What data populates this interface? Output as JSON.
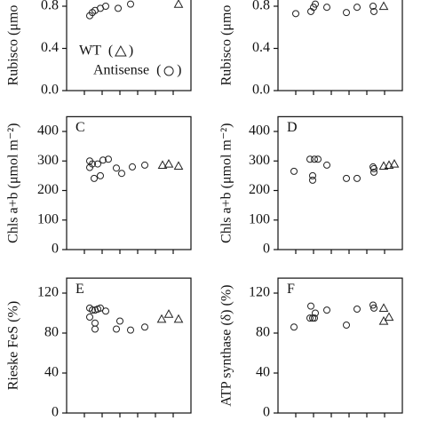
{
  "chart_data": [
    {
      "type": "scatter",
      "ylabel": "Rubisco (μmo",
      "xlim": [
        0,
        7
      ],
      "xticks": [
        1,
        2,
        3,
        4,
        5,
        6
      ],
      "ylim": [
        0,
        1.0
      ],
      "yticks": [
        {
          "value": 0,
          "label": "0.0"
        },
        0.4,
        0.8
      ],
      "legend": true,
      "series": [
        {
          "name": "WT",
          "marker": "triangle",
          "x": [
            6.3
          ],
          "values": [
            0.82
          ]
        },
        {
          "name": "Antisense",
          "marker": "circle",
          "x": [
            1.3,
            1.45,
            1.6,
            1.9,
            2.2,
            2.9,
            3.6
          ],
          "values": [
            0.71,
            0.74,
            0.76,
            0.78,
            0.8,
            0.78,
            0.82
          ]
        }
      ]
    },
    {
      "type": "scatter",
      "ylabel": "Rubisco (μmo",
      "xlim": [
        0,
        7
      ],
      "xticks": [
        1,
        2,
        3,
        4,
        5,
        6
      ],
      "ylim": [
        0,
        1.0
      ],
      "yticks": [
        {
          "value": 0,
          "label": "0.0"
        },
        0.4,
        0.8
      ],
      "series": [
        {
          "marker": "triangle",
          "x": [
            5.95
          ],
          "values": [
            0.8
          ]
        },
        {
          "marker": "circle",
          "x": [
            1.0,
            1.85,
            2.0,
            2.1,
            2.75,
            3.85,
            4.45,
            5.35,
            5.4
          ],
          "values": [
            0.73,
            0.75,
            0.79,
            0.82,
            0.79,
            0.74,
            0.79,
            0.8,
            0.75
          ]
        }
      ]
    },
    {
      "type": "scatter",
      "title": "C",
      "ylabel": "Chls a+b (μmol m⁻²)",
      "xlim": [
        0,
        7
      ],
      "xticks": [
        1,
        2,
        3,
        4,
        5,
        6
      ],
      "ylim": [
        0,
        450
      ],
      "yticks": [
        0,
        100,
        200,
        300,
        400
      ],
      "series": [
        {
          "marker": "triangle",
          "x": [
            5.4,
            5.75,
            6.3
          ],
          "values": [
            286,
            290,
            283
          ]
        },
        {
          "marker": "circle",
          "x": [
            1.3,
            1.3,
            1.45,
            1.55,
            1.75,
            1.9,
            2.05,
            2.35,
            2.8,
            3.1,
            3.7,
            4.4
          ],
          "values": [
            300,
            278,
            290,
            241,
            290,
            250,
            303,
            306,
            276,
            258,
            280,
            286
          ]
        }
      ]
    },
    {
      "type": "scatter",
      "title": "D",
      "ylabel": "Chls a+b (μmol m⁻²)",
      "xlim": [
        0,
        7
      ],
      "xticks": [
        1,
        2,
        3,
        4,
        5,
        6
      ],
      "ylim": [
        0,
        450
      ],
      "yticks": [
        0,
        100,
        200,
        300,
        400
      ],
      "series": [
        {
          "marker": "triangle",
          "x": [
            5.95,
            6.25,
            6.55
          ],
          "values": [
            283,
            286,
            290
          ]
        },
        {
          "marker": "circle",
          "x": [
            0.9,
            1.8,
            1.95,
            1.95,
            2.05,
            2.25,
            2.75,
            3.85,
            4.45,
            5.35,
            5.4,
            5.4
          ],
          "values": [
            265,
            306,
            250,
            235,
            306,
            306,
            286,
            241,
            241,
            280,
            262,
            274
          ]
        }
      ]
    },
    {
      "type": "scatter",
      "title": "E",
      "ylabel": "Rieske FeS (%)",
      "xlim": [
        0,
        7
      ],
      "xticks": [
        1,
        2,
        3,
        4,
        5,
        6
      ],
      "ylim": [
        0,
        135
      ],
      "yticks": [
        0,
        40,
        80,
        120
      ],
      "series": [
        {
          "marker": "triangle",
          "x": [
            5.35,
            5.75,
            6.3
          ],
          "values": [
            94,
            99,
            94
          ]
        },
        {
          "marker": "circle",
          "x": [
            1.3,
            1.3,
            1.45,
            1.6,
            1.6,
            1.6,
            1.75,
            1.9,
            2.2,
            2.8,
            3.0,
            3.6,
            4.4
          ],
          "values": [
            105,
            96,
            103,
            103,
            90,
            84,
            104,
            105,
            102,
            84,
            92,
            83,
            86
          ]
        }
      ]
    },
    {
      "type": "scatter",
      "title": "F",
      "ylabel": "ATP synthase (δ) (%)",
      "xlim": [
        0,
        7
      ],
      "xticks": [
        1,
        2,
        3,
        4,
        5,
        6
      ],
      "ylim": [
        0,
        135
      ],
      "yticks": [
        0,
        40,
        80,
        120
      ],
      "series": [
        {
          "marker": "triangle",
          "x": [
            5.95,
            5.95,
            6.25
          ],
          "values": [
            105,
            92,
            96
          ]
        },
        {
          "marker": "circle",
          "x": [
            0.9,
            1.8,
            1.85,
            1.95,
            2.05,
            2.1,
            2.75,
            3.85,
            4.45,
            5.35,
            5.4
          ],
          "values": [
            86,
            95,
            107,
            95,
            95,
            100,
            103,
            88,
            104,
            108,
            105
          ]
        }
      ]
    }
  ]
}
